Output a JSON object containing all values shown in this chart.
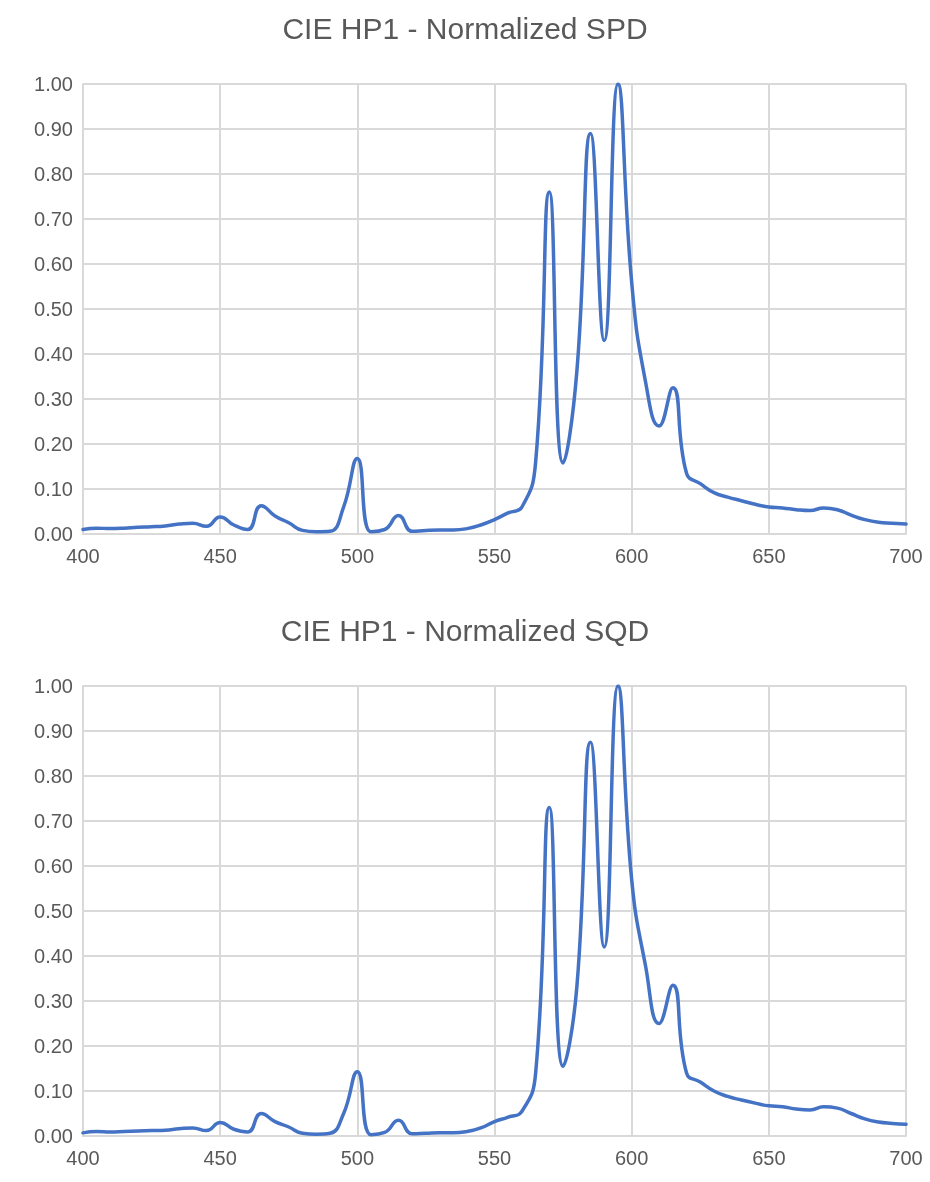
{
  "chart_data": [
    {
      "type": "line",
      "title": "CIE HP1 - Normalized SPD",
      "x": [
        400,
        405,
        410,
        415,
        420,
        425,
        430,
        435,
        440,
        445,
        450,
        455,
        460,
        465,
        470,
        475,
        480,
        485,
        490,
        495,
        500,
        505,
        510,
        515,
        520,
        525,
        530,
        535,
        540,
        545,
        550,
        555,
        560,
        565,
        570,
        575,
        580,
        585,
        590,
        595,
        600,
        605,
        610,
        615,
        620,
        625,
        630,
        635,
        640,
        645,
        650,
        655,
        660,
        665,
        670,
        675,
        680,
        685,
        690,
        695,
        700
      ],
      "series": [
        {
          "color": "#4472c4",
          "values": [
            0.01,
            0.013,
            0.012,
            0.013,
            0.015,
            0.016,
            0.018,
            0.022,
            0.024,
            0.017,
            0.038,
            0.02,
            0.01,
            0.063,
            0.04,
            0.025,
            0.008,
            0.005,
            0.006,
            0.06,
            0.168,
            0.005,
            0.01,
            0.041,
            0.006,
            0.008,
            0.009,
            0.009,
            0.012,
            0.02,
            0.032,
            0.047,
            0.06,
            0.16,
            0.76,
            0.158,
            0.36,
            0.89,
            0.43,
            1.0,
            0.56,
            0.34,
            0.24,
            0.325,
            0.135,
            0.112,
            0.092,
            0.082,
            0.074,
            0.066,
            0.06,
            0.058,
            0.054,
            0.052,
            0.058,
            0.054,
            0.042,
            0.032,
            0.026,
            0.024,
            0.022
          ]
        }
      ],
      "xlim": [
        400,
        700
      ],
      "xticks": [
        400,
        450,
        500,
        550,
        600,
        650,
        700
      ],
      "ylim": [
        0,
        1
      ],
      "yticks": [
        {
          "value": 0,
          "label": "0.00"
        },
        {
          "value": 0.1,
          "label": "0.10"
        },
        {
          "value": 0.2,
          "label": "0.20"
        },
        {
          "value": 0.3,
          "label": "0.30"
        },
        {
          "value": 0.4,
          "label": "0.40"
        },
        {
          "value": 0.5,
          "label": "0.50"
        },
        {
          "value": 0.6,
          "label": "0.60"
        },
        {
          "value": 0.7,
          "label": "0.70"
        },
        {
          "value": 0.8,
          "label": "0.80"
        },
        {
          "value": 0.9,
          "label": "0.90"
        },
        {
          "value": 1,
          "label": "1.00"
        }
      ],
      "grid": true,
      "marker": "none",
      "line_style": "solid"
    },
    {
      "type": "line",
      "title": "CIE HP1 - Normalized SQD",
      "x": [
        400,
        405,
        410,
        415,
        420,
        425,
        430,
        435,
        440,
        445,
        450,
        455,
        460,
        465,
        470,
        475,
        480,
        485,
        490,
        495,
        500,
        505,
        510,
        515,
        520,
        525,
        530,
        535,
        540,
        545,
        550,
        555,
        560,
        565,
        570,
        575,
        580,
        585,
        590,
        595,
        600,
        605,
        610,
        615,
        620,
        625,
        630,
        635,
        640,
        645,
        650,
        655,
        660,
        665,
        670,
        675,
        680,
        685,
        690,
        695,
        700
      ],
      "series": [
        {
          "color": "#4472c4",
          "values": [
            0.007,
            0.01,
            0.009,
            0.01,
            0.011,
            0.012,
            0.013,
            0.016,
            0.018,
            0.012,
            0.03,
            0.015,
            0.009,
            0.05,
            0.032,
            0.02,
            0.006,
            0.004,
            0.006,
            0.05,
            0.143,
            0.003,
            0.008,
            0.035,
            0.005,
            0.006,
            0.007,
            0.007,
            0.01,
            0.018,
            0.032,
            0.042,
            0.055,
            0.14,
            0.73,
            0.155,
            0.33,
            0.875,
            0.42,
            1.0,
            0.57,
            0.38,
            0.25,
            0.335,
            0.14,
            0.12,
            0.1,
            0.088,
            0.08,
            0.073,
            0.067,
            0.065,
            0.06,
            0.058,
            0.065,
            0.062,
            0.05,
            0.038,
            0.031,
            0.028,
            0.026
          ]
        }
      ],
      "xlim": [
        400,
        700
      ],
      "xticks": [
        400,
        450,
        500,
        550,
        600,
        650,
        700
      ],
      "ylim": [
        0,
        1
      ],
      "yticks": [
        {
          "value": 0,
          "label": "0.00"
        },
        {
          "value": 0.1,
          "label": "0.10"
        },
        {
          "value": 0.2,
          "label": "0.20"
        },
        {
          "value": 0.3,
          "label": "0.30"
        },
        {
          "value": 0.4,
          "label": "0.40"
        },
        {
          "value": 0.5,
          "label": "0.50"
        },
        {
          "value": 0.6,
          "label": "0.60"
        },
        {
          "value": 0.7,
          "label": "0.70"
        },
        {
          "value": 0.8,
          "label": "0.80"
        },
        {
          "value": 0.9,
          "label": "0.90"
        },
        {
          "value": 1,
          "label": "1.00"
        }
      ],
      "grid": true,
      "marker": "none",
      "line_style": "solid"
    }
  ]
}
